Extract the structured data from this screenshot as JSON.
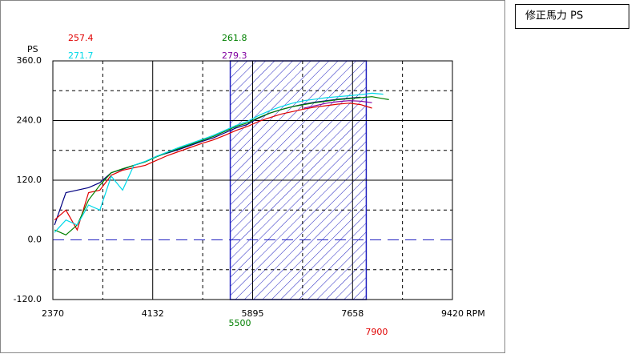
{
  "panel_title": "修正馬力 PS",
  "chart_data": {
    "type": "line",
    "y_label": "PS",
    "x_label": "RPM",
    "xlim": [
      2370,
      9420
    ],
    "xticks": [
      2370,
      4132,
      5895,
      7658,
      9420
    ],
    "xgrid": [
      3251,
      5014,
      6776,
      8539
    ],
    "ylim": [
      -120,
      360
    ],
    "yticks": [
      {
        "value": -120,
        "label": "-120.0"
      },
      {
        "value": 0,
        "label": "0.0"
      },
      {
        "value": 120,
        "label": "120.0"
      },
      {
        "value": 240,
        "label": "240.0"
      },
      {
        "value": 360,
        "label": "360.0"
      }
    ],
    "ygrid": [
      -60,
      60,
      180,
      300
    ],
    "highlight": {
      "from": 5500,
      "to": 7900,
      "color": "#2020c0"
    },
    "x": [
      2400,
      2600,
      2800,
      3000,
      3200,
      3400,
      3600,
      3800,
      4000,
      4200,
      4400,
      4600,
      4800,
      5000,
      5200,
      5400,
      5600,
      5800,
      6000,
      6200,
      6400,
      6600,
      6800,
      7000,
      7200,
      7400,
      7600,
      7800,
      8000,
      8200,
      8300
    ],
    "series": [
      {
        "color": "#000080",
        "values": [
          30,
          95,
          100,
          105,
          115,
          135,
          142,
          150,
          157,
          168,
          175,
          182,
          190,
          198,
          205,
          215,
          225,
          232,
          245,
          255,
          262,
          268,
          273,
          277,
          280,
          283,
          285,
          287,
          null,
          null,
          null
        ]
      },
      {
        "color": "#e00000",
        "readout": 257.4,
        "values": [
          40,
          60,
          20,
          95,
          100,
          130,
          140,
          145,
          150,
          160,
          170,
          178,
          186,
          194,
          201,
          210,
          220,
          228,
          238,
          246,
          253,
          258,
          263,
          267,
          270,
          273,
          275,
          272,
          265,
          null,
          null
        ]
      },
      {
        "color": "#008000",
        "readout": 261.8,
        "values": [
          20,
          10,
          30,
          80,
          110,
          135,
          143,
          150,
          157,
          167,
          176,
          184,
          192,
          200,
          208,
          218,
          228,
          235,
          246,
          255,
          262,
          268,
          272,
          276,
          279,
          282,
          284,
          286,
          288,
          284,
          282
        ]
      },
      {
        "color": "#00d8e8",
        "readout": 271.7,
        "values": [
          15,
          40,
          30,
          70,
          60,
          128,
          100,
          150,
          158,
          168,
          177,
          186,
          194,
          202,
          210,
          220,
          230,
          238,
          250,
          260,
          268,
          275,
          280,
          283,
          286,
          288,
          290,
          292,
          295,
          293,
          null
        ]
      },
      {
        "color": "#8000a0",
        "readout": 279.3,
        "values": [
          null,
          null,
          null,
          null,
          null,
          null,
          null,
          null,
          null,
          null,
          null,
          null,
          null,
          null,
          null,
          null,
          null,
          null,
          null,
          null,
          null,
          null,
          265,
          270,
          275,
          278,
          280,
          279,
          276,
          null,
          null
        ]
      }
    ]
  }
}
